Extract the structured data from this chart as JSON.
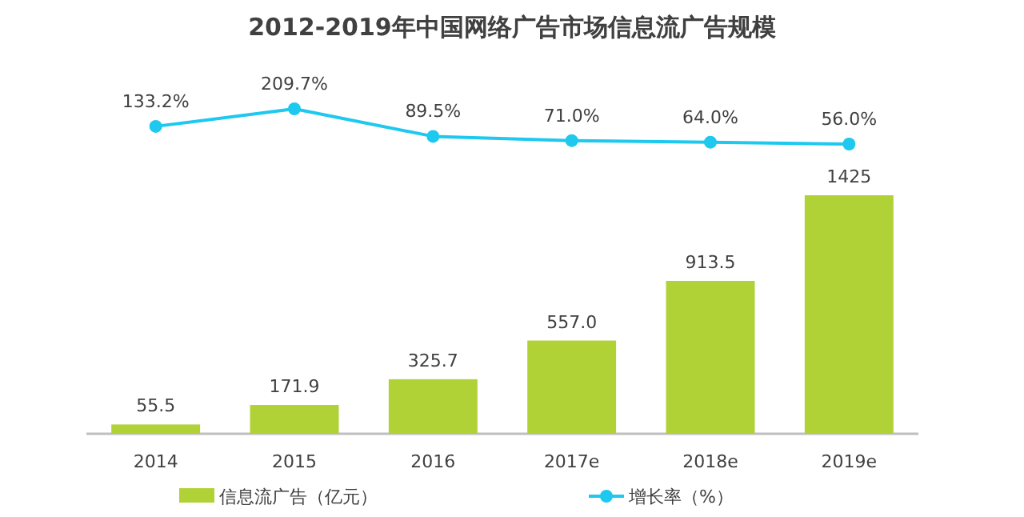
{
  "chart_data": [
    {
      "type": "line",
      "title": "2012-2019年中国网络广告市场信息流广告规模",
      "categories": [
        null,
        null,
        null,
        null,
        null,
        null
      ],
      "series": [
        {
          "name": "增长率（%）",
          "color": "#1ec8ef",
          "marker": "circle",
          "values": [
            133.2,
            209.7,
            89.5,
            71.0,
            64.0,
            56.0
          ],
          "value_labels": [
            "133.2%",
            "209.7%",
            "89.5%",
            "71.0%",
            "64.0%",
            "56.0%"
          ]
        }
      ],
      "legend": "bottom"
    },
    {
      "type": "bar",
      "categories": [
        "2014",
        "2015",
        "2016",
        "2017e",
        "2018e",
        "2019e"
      ],
      "series": [
        {
          "name": "信息流广告（亿元）",
          "color": "#b0d236",
          "values": [
            55.5,
            171.9,
            325.7,
            557.0,
            913.5,
            1425
          ],
          "value_labels": [
            "55.5",
            "171.9",
            "325.7",
            "557.0",
            "913.5",
            "1425"
          ]
        }
      ],
      "legend": "bottom"
    }
  ]
}
